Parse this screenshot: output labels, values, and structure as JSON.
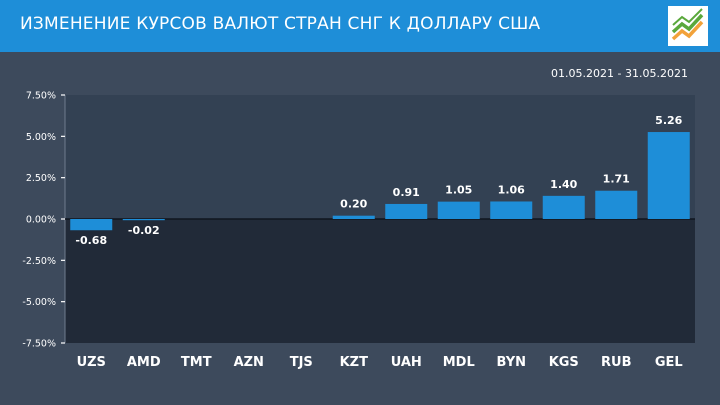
{
  "header": {
    "title": "ИЗМЕНЕНИЕ КУРСОВ ВАЛЮТ СТРАН СНГ К ДОЛЛАРУ США"
  },
  "period": {
    "start": "01.05.2021",
    "separator": "-",
    "end": "31.05.2021"
  },
  "colors": {
    "header_bg": "#1e8ed8",
    "page_bg": "#3d4a5c",
    "positive_zone": "#334153",
    "negative_zone": "#212a38",
    "bar": "#1e8ed8",
    "text": "#ffffff",
    "logo_green": "#5aa83c",
    "logo_orange": "#f2a23a"
  },
  "logo": {
    "icon": "rising-chart-logo-icon"
  },
  "chart_data": {
    "type": "bar",
    "categories": [
      "UZS",
      "AMD",
      "TMT",
      "AZN",
      "TJS",
      "KZT",
      "UAH",
      "MDL",
      "BYN",
      "KGS",
      "RUB",
      "GEL"
    ],
    "values": [
      -0.68,
      -0.02,
      0,
      0,
      0,
      0.2,
      0.91,
      1.05,
      1.06,
      1.4,
      1.71,
      5.26
    ],
    "value_labels": [
      "-0.68",
      "-0.02",
      "",
      "",
      "",
      "0.20",
      "0.91",
      "1.05",
      "1.06",
      "1.40",
      "1.71",
      "5.26"
    ],
    "yticks": [
      7.5,
      5.0,
      2.5,
      0.0,
      -2.5,
      -5.0,
      -7.5
    ],
    "ytick_labels": [
      "7.50%",
      "5.00%",
      "2.50%",
      "0.00%",
      "-2.50%",
      "-5.00%",
      "-7.50%"
    ],
    "ylim": [
      -7.5,
      7.5
    ],
    "title": "",
    "xlabel": "",
    "ylabel": "",
    "grid": true
  }
}
